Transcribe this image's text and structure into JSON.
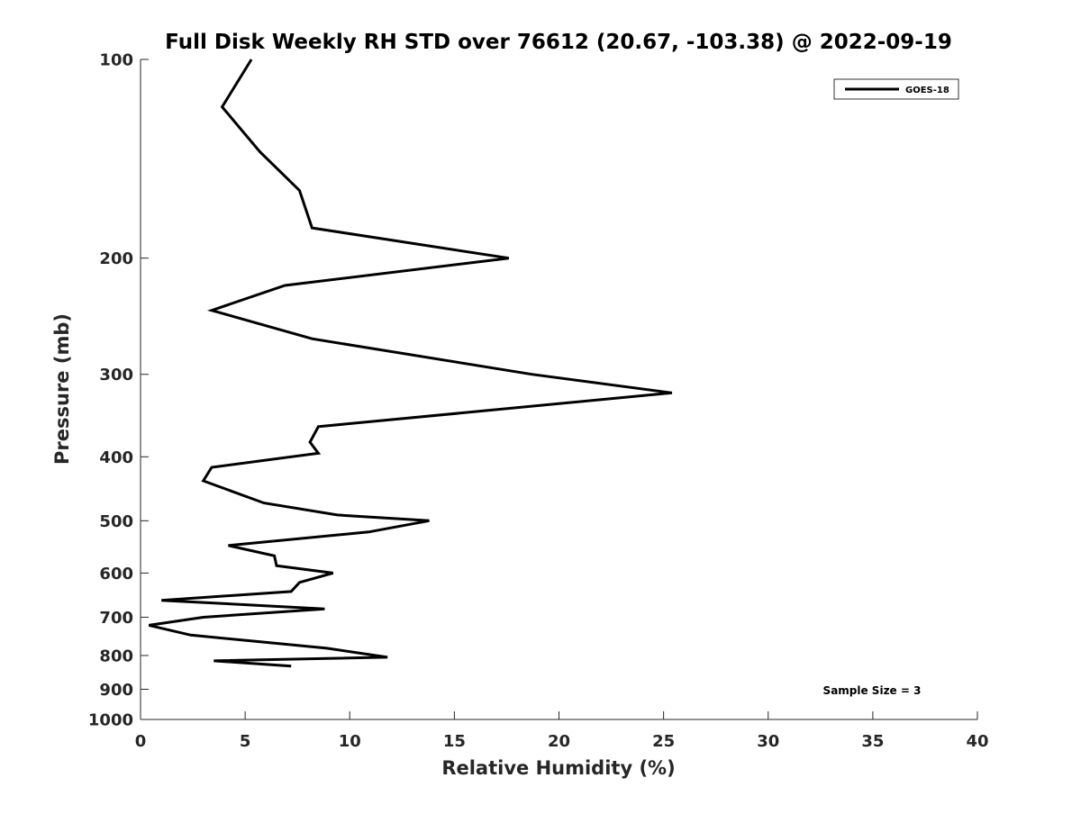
{
  "chart_data": {
    "type": "line",
    "title": "Full Disk Weekly RH STD over 76612 (20.67, -103.38) @ 2022-09-19",
    "xlabel": "Relative Humidity (%)",
    "ylabel": "Pressure (mb)",
    "xlim": [
      0,
      40
    ],
    "ylim": [
      100,
      1000
    ],
    "y_scale": "log",
    "y_reversed": true,
    "x_ticks": [
      0,
      5,
      10,
      15,
      20,
      25,
      30,
      35,
      40
    ],
    "y_ticks": [
      100,
      200,
      300,
      400,
      500,
      600,
      700,
      800,
      900,
      1000
    ],
    "grid": false,
    "legend_position": "top-right",
    "series": [
      {
        "name": "GOES-18",
        "color": "#000000",
        "x": [
          5.3,
          3.9,
          5.7,
          7.6,
          8.2,
          17.6,
          6.9,
          3.4,
          8.2,
          18.7,
          25.4,
          8.5,
          8.1,
          8.5,
          3.4,
          3.0,
          5.9,
          9.4,
          13.8,
          10.9,
          4.2,
          6.4,
          6.5,
          9.2,
          7.6,
          7.2,
          1.0,
          8.8,
          3.0,
          0.4,
          2.4,
          8.9,
          11.8,
          3.5,
          7.2
        ],
        "y": [
          100,
          118,
          138,
          158,
          180,
          200,
          220,
          240,
          265,
          300,
          320,
          360,
          380,
          395,
          415,
          435,
          470,
          490,
          500,
          520,
          545,
          565,
          585,
          600,
          620,
          640,
          660,
          680,
          700,
          720,
          745,
          780,
          805,
          815,
          830
        ]
      }
    ],
    "annotations": [
      "Sample Size = 3"
    ]
  }
}
